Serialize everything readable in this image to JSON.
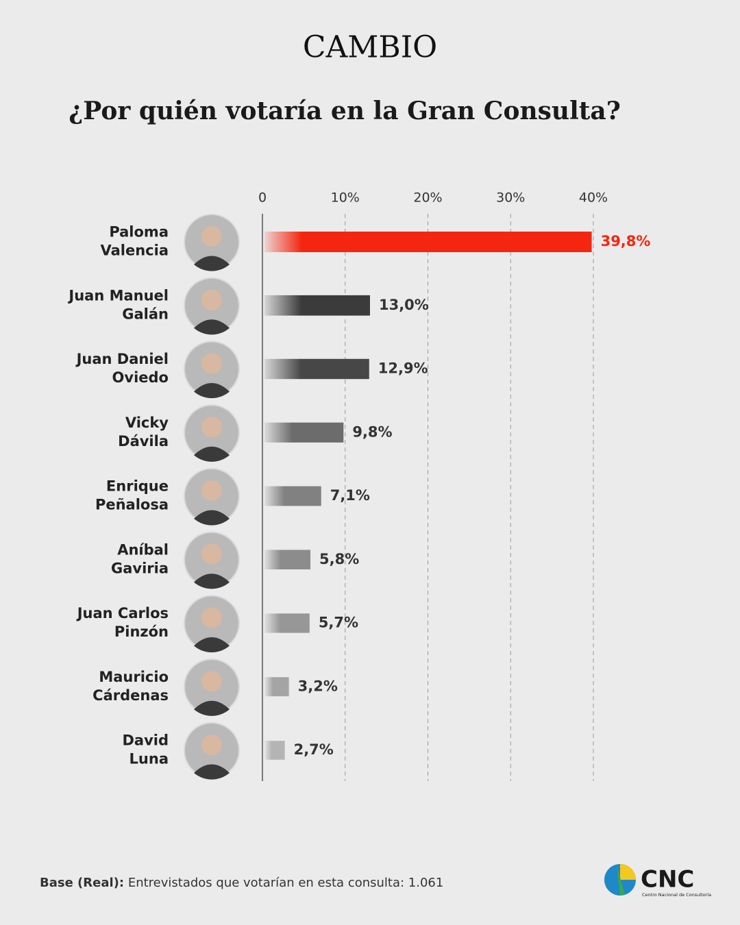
{
  "brand": "CAMBIO",
  "chart_data": {
    "type": "hbar",
    "title": "¿Por quién votaría en la Gran Consulta?",
    "categories": [
      "Paloma\nValencia",
      "Juan Manuel\nGalán",
      "Juan Daniel\nOviedo",
      "Vicky\nDávila",
      "Enrique\nPeñalosa",
      "Aníbal\nGaviria",
      "Juan Carlos\nPinzón",
      "Mauricio\nCárdenas",
      "David\nLuna"
    ],
    "values": [
      39.8,
      13.0,
      12.9,
      9.8,
      7.1,
      5.8,
      5.7,
      3.2,
      2.7
    ],
    "value_labels": [
      "39,8%",
      "13,0%",
      "12,9%",
      "9,8%",
      "7,1%",
      "5,8%",
      "5,7%",
      "3,2%",
      "2,7%"
    ],
    "colors": [
      "#f5260f",
      "#3b3b3b",
      "#474747",
      "#6c6c6c",
      "#818181",
      "#8c8c8c",
      "#979797",
      "#a4a4a4",
      "#b4b4b4"
    ],
    "value_label_colors": [
      "#f5260f",
      "#333333",
      "#333333",
      "#333333",
      "#333333",
      "#333333",
      "#333333",
      "#333333",
      "#333333"
    ],
    "xlim": [
      0,
      40
    ],
    "xticks": [
      0,
      {
        "value": 10,
        "label": "10%"
      },
      {
        "value": 20,
        "label": "20%"
      },
      {
        "value": 30,
        "label": "30%"
      },
      {
        "value": 40,
        "label": "40%"
      }
    ],
    "grid": true
  },
  "note": {
    "label": "Base (Real):",
    "text": "Entrevistados que votarían en esta consulta: 1.061"
  },
  "logo": {
    "text": "CNC",
    "subtitle": "Centro Nacional de Consultoría"
  }
}
